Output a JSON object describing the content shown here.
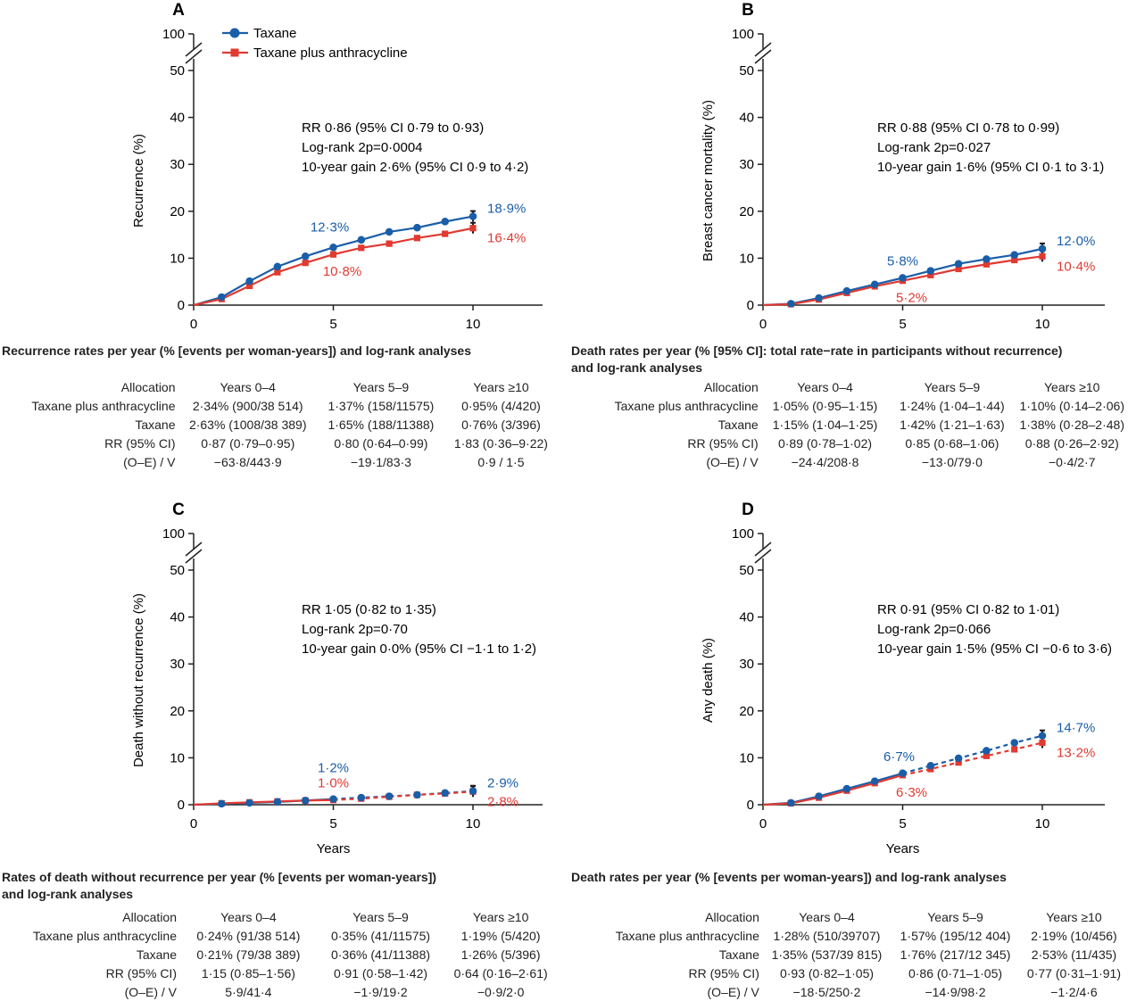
{
  "legend": {
    "items": [
      {
        "label": "Taxane",
        "color": "#1a5ea8",
        "marker": "circle"
      },
      {
        "label": "Taxane plus anthracycline",
        "color": "#e03a31",
        "marker": "square"
      }
    ]
  },
  "panels": [
    {
      "letter": "A",
      "stats": [
        "RR 0·86 (95% CI 0·79 to 0·93)",
        "Log-rank 2p=0·0004",
        "10-year gain 2·6% (95% CI 0·9 to 4·2)"
      ],
      "table": {
        "title": [
          "Recurrence rates per year (% [events per woman-years]) and log-rank analyses"
        ],
        "header": [
          "Allocation",
          "Years 0–4",
          "Years 5–9",
          "Years ≥10"
        ],
        "rows": [
          [
            "Taxane plus anthracycline",
            "2·34% (900/38 514)",
            "1·37% (158/11575)",
            "0·95% (4/420)"
          ],
          [
            "Taxane",
            "2·63% (1008/38 389)",
            "1·65% (188/11388)",
            "0·76% (3/396)"
          ],
          [
            "RR (95% CI)",
            "0·87 (0·79–0·95)",
            "0·80 (0·64–0·99)",
            "1·83 (0·36–9·22)"
          ],
          [
            "(O–E) / V",
            "−63·8/443·9",
            "−19·1/83·3",
            "0·9 / 1·5"
          ]
        ]
      }
    },
    {
      "letter": "B",
      "stats": [
        "RR 0·88 (95% CI 0·78 to 0·99)",
        "Log-rank 2p=0·027",
        "10-year gain 1·6% (95% CI 0·1 to 3·1)"
      ],
      "table": {
        "title": [
          "Death rates per year (% [95% CI]: total rate−rate in participants without recurrence)",
          "and log-rank analyses"
        ],
        "header": [
          "Allocation",
          "Years 0–4",
          "Years 5–9",
          "Years ≥10"
        ],
        "rows": [
          [
            "Taxane plus anthracycline",
            "1·05% (0·95–1·15)",
            "1·24% (1·04–1·44)",
            "1·10% (0·14–2·06)"
          ],
          [
            "Taxane",
            "1·15% (1·04–1·25)",
            "1·42% (1·21–1·63)",
            "1·38% (0·28–2·48)"
          ],
          [
            "RR (95% CI)",
            "0·89 (0·78–1·02)",
            "0·85 (0·68–1·06)",
            "0·88 (0·26–2·92)"
          ],
          [
            "(O–E) / V",
            "−24·4/208·8",
            "−13·0/79·0",
            "−0·4/2·7"
          ]
        ]
      }
    },
    {
      "letter": "C",
      "stats": [
        "RR 1·05 (0·82 to 1·35)",
        "Log-rank 2p=0·70",
        "10-year gain 0·0% (95% CI −1·1 to 1·2)"
      ],
      "table": {
        "title": [
          "Rates of death without recurrence per year (% [events per woman-years])",
          "and log-rank analyses"
        ],
        "header": [
          "Allocation",
          "Years 0–4",
          "Years 5–9",
          "Years ≥10"
        ],
        "rows": [
          [
            "Taxane plus anthracycline",
            "0·24% (91/38 514)",
            "0·35% (41/11575)",
            "1·19% (5/420)"
          ],
          [
            "Taxane",
            "0·21% (79/38 389)",
            "0·36% (41/11388)",
            "1·26% (5/396)"
          ],
          [
            "RR (95% CI)",
            "1·15 (0·85–1·56)",
            "0·91 (0·58–1·42)",
            "0·64 (0·16–2·61)"
          ],
          [
            "(O–E) / V",
            "5·9/41·4",
            "−1·9/19·2",
            "−0·9/2·0"
          ]
        ]
      }
    },
    {
      "letter": "D",
      "stats": [
        "RR 0·91 (95% CI 0·82 to 1·01)",
        "Log-rank 2p=0·066",
        "10-year gain 1·5% (95% CI −0·6 to 3·6)"
      ],
      "table": {
        "title": [
          "Death rates per year (% [events per woman-years]) and log-rank analyses"
        ],
        "header": [
          "Allocation",
          "Years 0–4",
          "Years 5–9",
          "Years ≥10"
        ],
        "rows": [
          [
            "Taxane plus anthracycline",
            "1·28% (510/39707)",
            "1·57% (195/12 404)",
            "2·19% (10/456)"
          ],
          [
            "Taxane",
            "1·35% (537/39 815)",
            "1·76% (217/12 345)",
            "2·53% (11/435)"
          ],
          [
            "RR (95% CI)",
            "0·93 (0·82–1·05)",
            "0·86 (0·71–1·05)",
            "0·77 (0·31–1·91)"
          ],
          [
            "(O–E) / V",
            "−18·5/250·2",
            "−14·9/98·2",
            "−1·2/4·6"
          ]
        ]
      }
    }
  ],
  "chart_data": [
    {
      "type": "line",
      "ylabel": "Recurrence (%)",
      "xlabel": "",
      "xticks": [
        0,
        5,
        10
      ],
      "yticks": [
        0,
        10,
        20,
        30,
        40,
        50,
        100
      ],
      "xlim": [
        0,
        12.5
      ],
      "ylim": [
        0,
        50
      ],
      "y_axis_break": true,
      "x": [
        0,
        1,
        2,
        3,
        4,
        5,
        6,
        7,
        8,
        9,
        10
      ],
      "series": [
        {
          "name": "Taxane",
          "color": "#1a5ea8",
          "marker": "circle",
          "values": [
            0,
            1.7,
            5.1,
            8.2,
            10.4,
            12.3,
            13.9,
            15.6,
            16.5,
            17.8,
            18.9
          ]
        },
        {
          "name": "Taxane plus anthracycline",
          "color": "#e03a31",
          "marker": "square",
          "values": [
            0,
            1.3,
            4.1,
            7.0,
            9.0,
            10.8,
            12.2,
            13.1,
            14.3,
            15.2,
            16.4
          ]
        }
      ],
      "annotations": [
        {
          "x": 5,
          "y": 12.3,
          "text": "12·3%",
          "color": "#1a5ea8",
          "pos": "above"
        },
        {
          "x": 5,
          "y": 10.8,
          "text": "10·8%",
          "color": "#e03a31",
          "pos": "below"
        },
        {
          "x": 10,
          "y": 18.9,
          "text": "18·9%",
          "color": "#1a5ea8",
          "pos": "right-up"
        },
        {
          "x": 10,
          "y": 16.4,
          "text": "16·4%",
          "color": "#e03a31",
          "pos": "right-down"
        }
      ]
    },
    {
      "type": "line",
      "ylabel": "Breast cancer mortality (%)",
      "xlabel": "",
      "xticks": [
        0,
        5,
        10
      ],
      "yticks": [
        0,
        10,
        20,
        30,
        40,
        50,
        100
      ],
      "xlim": [
        0,
        12.5
      ],
      "ylim": [
        0,
        50
      ],
      "y_axis_break": true,
      "x": [
        0,
        1,
        2,
        3,
        4,
        5,
        6,
        7,
        8,
        9,
        10
      ],
      "series": [
        {
          "name": "Taxane",
          "color": "#1a5ea8",
          "marker": "circle",
          "values": [
            0,
            0.3,
            1.5,
            3.0,
            4.4,
            5.8,
            7.3,
            8.8,
            9.8,
            10.7,
            12.0
          ]
        },
        {
          "name": "Taxane plus anthracycline",
          "color": "#e03a31",
          "marker": "square",
          "values": [
            0,
            0.2,
            1.2,
            2.6,
            4.0,
            5.2,
            6.4,
            7.7,
            8.7,
            9.6,
            10.4
          ]
        }
      ],
      "annotations": [
        {
          "x": 5,
          "y": 5.8,
          "text": "5·8%",
          "color": "#1a5ea8",
          "pos": "above"
        },
        {
          "x": 5,
          "y": 5.2,
          "text": "5·2%",
          "color": "#e03a31",
          "pos": "below"
        },
        {
          "x": 10,
          "y": 12.0,
          "text": "12·0%",
          "color": "#1a5ea8",
          "pos": "right-up"
        },
        {
          "x": 10,
          "y": 10.4,
          "text": "10·4%",
          "color": "#e03a31",
          "pos": "right-down"
        }
      ]
    },
    {
      "type": "line",
      "ylabel": "Death without recurrence (%)",
      "xlabel": "Years",
      "xticks": [
        0,
        5,
        10
      ],
      "yticks": [
        0,
        10,
        20,
        30,
        40,
        50,
        100
      ],
      "xlim": [
        0,
        12.5
      ],
      "ylim": [
        0,
        50
      ],
      "y_axis_break": true,
      "dashed_after": 5,
      "x": [
        0,
        1,
        2,
        3,
        4,
        5,
        6,
        7,
        8,
        9,
        10
      ],
      "series": [
        {
          "name": "Taxane",
          "color": "#1a5ea8",
          "marker": "circle",
          "values": [
            0,
            0.2,
            0.4,
            0.6,
            0.9,
            1.2,
            1.5,
            1.8,
            2.1,
            2.5,
            2.9
          ]
        },
        {
          "name": "Taxane plus anthracycline",
          "color": "#e03a31",
          "marker": "square",
          "values": [
            0,
            0.3,
            0.5,
            0.7,
            0.9,
            1.0,
            1.3,
            1.7,
            2.1,
            2.4,
            2.8
          ]
        }
      ],
      "annotations": [
        {
          "x": 5,
          "y": 1.2,
          "text": "1·2%",
          "color": "#1a5ea8",
          "pos": "above-high"
        },
        {
          "x": 5,
          "y": 1.0,
          "text": "1·0%",
          "color": "#e03a31",
          "pos": "above"
        },
        {
          "x": 10,
          "y": 2.9,
          "text": "2·9%",
          "color": "#1a5ea8",
          "pos": "right-up"
        },
        {
          "x": 10,
          "y": 2.8,
          "text": "2·8%",
          "color": "#e03a31",
          "pos": "right-down"
        }
      ]
    },
    {
      "type": "line",
      "ylabel": "Any death (%)",
      "xlabel": "Years",
      "xticks": [
        0,
        5,
        10
      ],
      "yticks": [
        0,
        10,
        20,
        30,
        40,
        50,
        100
      ],
      "xlim": [
        0,
        12.5
      ],
      "ylim": [
        0,
        50
      ],
      "y_axis_break": true,
      "dashed_after": 5,
      "x": [
        0,
        1,
        2,
        3,
        4,
        5,
        6,
        7,
        8,
        9,
        10
      ],
      "series": [
        {
          "name": "Taxane",
          "color": "#1a5ea8",
          "marker": "circle",
          "values": [
            0,
            0.4,
            1.8,
            3.4,
            5.0,
            6.7,
            8.3,
            9.9,
            11.5,
            13.2,
            14.7
          ]
        },
        {
          "name": "Taxane plus anthracycline",
          "color": "#e03a31",
          "marker": "square",
          "values": [
            0,
            0.3,
            1.5,
            3.0,
            4.6,
            6.3,
            7.6,
            9.0,
            10.4,
            11.8,
            13.2
          ]
        }
      ],
      "annotations": [
        {
          "x": 5,
          "y": 6.7,
          "text": "6·7%",
          "color": "#1a5ea8",
          "pos": "above-left"
        },
        {
          "x": 5,
          "y": 6.3,
          "text": "6·3%",
          "color": "#e03a31",
          "pos": "below"
        },
        {
          "x": 10,
          "y": 14.7,
          "text": "14·7%",
          "color": "#1a5ea8",
          "pos": "right-up"
        },
        {
          "x": 10,
          "y": 13.2,
          "text": "13·2%",
          "color": "#e03a31",
          "pos": "right-down"
        }
      ]
    }
  ]
}
